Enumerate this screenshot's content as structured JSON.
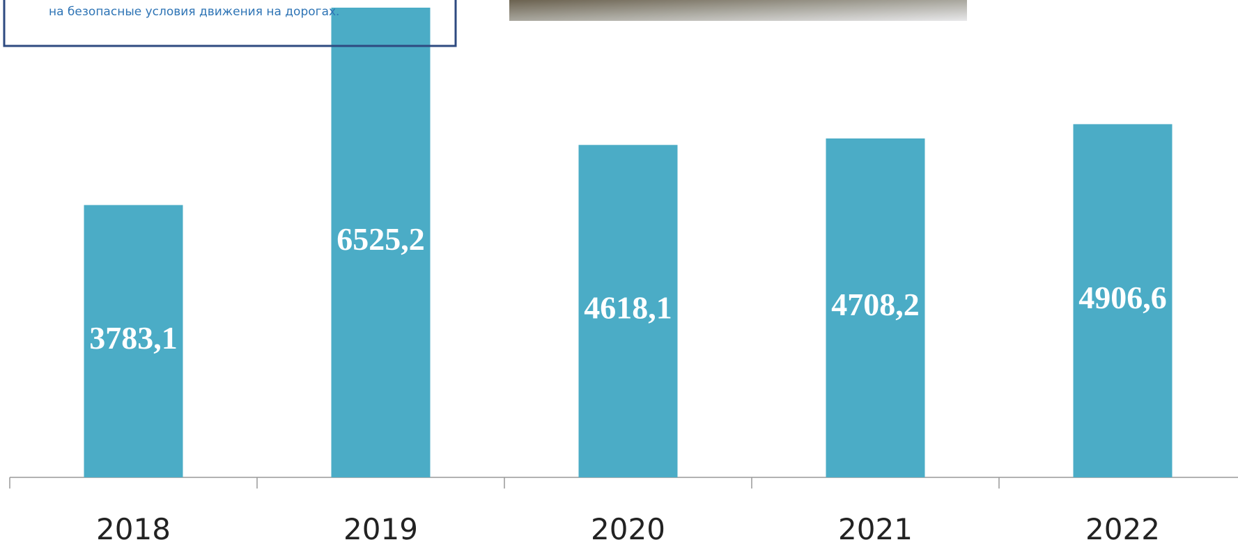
{
  "chart_data": {
    "type": "bar",
    "annotation": "на безопасные условия движения на дорогах.",
    "categories": [
      "2018",
      "2019",
      "2020",
      "2021",
      "2022"
    ],
    "values": [
      3783.1,
      6525.2,
      4618.1,
      4708.2,
      4906.6
    ],
    "value_labels": [
      "3783,1",
      "6525,2",
      "4618,1",
      "4708,2",
      "4906,6"
    ],
    "color": "#4bacc6"
  }
}
